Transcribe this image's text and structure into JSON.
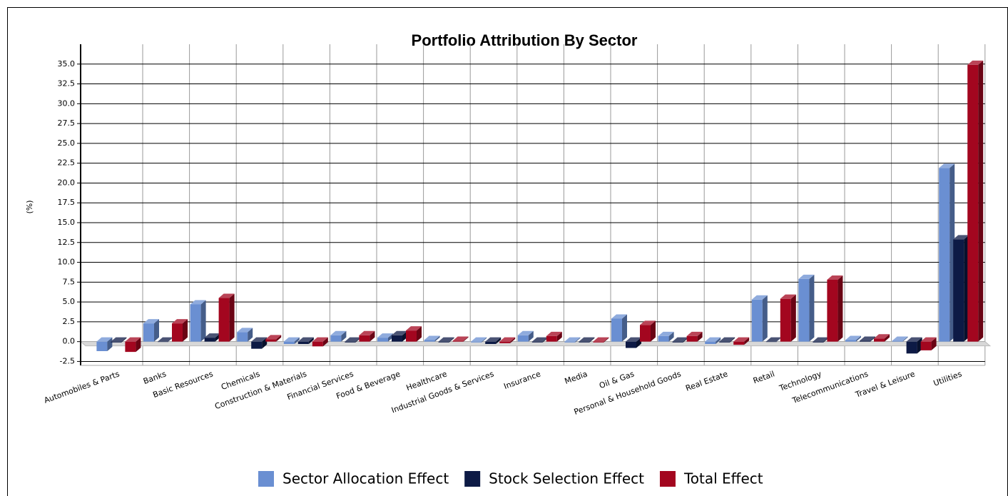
{
  "chart_data": {
    "type": "bar3d",
    "title": "Portfolio Attribution By Sector",
    "y_label": "(%)",
    "categories": [
      "Automobiles & Parts",
      "Banks",
      "Basic Resources",
      "Chemicals",
      "Construction & Materials",
      "Financial Services",
      "Food & Beverage",
      "Healthcare",
      "Industrial Goods & Services",
      "Insurance",
      "Media",
      "Oil & Gas",
      "Personal & Household Goods",
      "Real Estate",
      "Retail",
      "Technology",
      "Telecommunications",
      "Travel & Leisure",
      "Utilities"
    ],
    "series": [
      {
        "name": "Sector Allocation Effect",
        "color": "#6a8fd2",
        "values": [
          -1.2,
          2.3,
          4.7,
          1.2,
          -0.3,
          0.8,
          0.5,
          0.2,
          -0.1,
          0.8,
          -0.1,
          2.9,
          0.7,
          -0.3,
          5.3,
          7.9,
          0.2,
          0.1,
          21.9
        ]
      },
      {
        "name": "Stock Selection Effect",
        "color": "#0d1a45",
        "values": [
          -0.1,
          0.0,
          0.5,
          -0.9,
          -0.3,
          -0.1,
          0.8,
          -0.1,
          -0.3,
          -0.1,
          -0.1,
          -0.8,
          -0.1,
          -0.1,
          0.0,
          -0.1,
          0.1,
          -1.5,
          12.9
        ]
      },
      {
        "name": "Total Effect",
        "color": "#a3061f",
        "values": [
          -1.3,
          2.3,
          5.5,
          0.3,
          -0.6,
          0.8,
          1.4,
          0.1,
          -0.2,
          0.7,
          -0.1,
          2.1,
          0.7,
          -0.4,
          5.4,
          7.8,
          0.4,
          -1.1,
          34.9
        ]
      }
    ],
    "ylim": [
      -3,
      37.5
    ],
    "yticks": [
      -2.5,
      {
        "value": 0,
        "label": "0.0"
      },
      2.5,
      {
        "value": 5,
        "label": "5.0"
      },
      7.5,
      {
        "value": 10,
        "label": "10.0"
      },
      12.5,
      {
        "value": 15,
        "label": "15.0"
      },
      17.5,
      {
        "value": 20,
        "label": "20.0"
      },
      22.5,
      {
        "value": 25,
        "label": "25.0"
      },
      27.5,
      {
        "value": 30,
        "label": "30.0"
      },
      32.5,
      {
        "value": 35,
        "label": "35.0"
      }
    ],
    "grid": true,
    "legend": "bottom"
  }
}
